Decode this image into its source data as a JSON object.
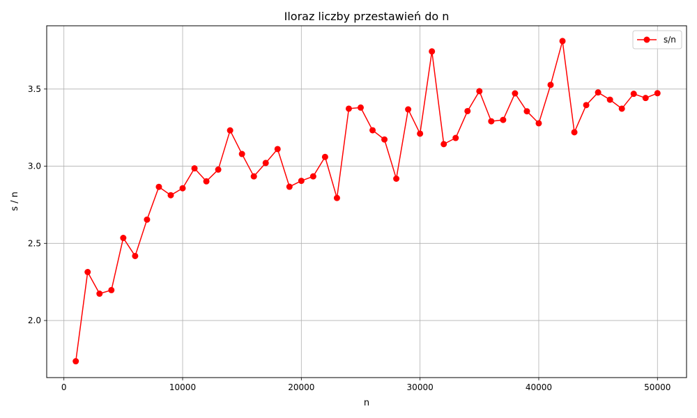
{
  "chart_data": {
    "type": "line",
    "title": "Iloraz liczby przestawień do n",
    "xlabel": "n",
    "ylabel": "s / n",
    "xlim": [
      -1450,
      52450
    ],
    "ylim": [
      1.63,
      3.91
    ],
    "xticks": [
      0,
      10000,
      20000,
      30000,
      40000,
      50000
    ],
    "yticks": [
      2.0,
      2.5,
      3.0,
      3.5
    ],
    "xtick_labels": [
      "0",
      "10000",
      "20000",
      "30000",
      "40000",
      "50000"
    ],
    "ytick_labels": [
      "2.0",
      "2.5",
      "3.0",
      "3.5"
    ],
    "grid": true,
    "legend_position": "top-right",
    "series": [
      {
        "name": "s/n",
        "color": "#ff0000",
        "marker": "circle",
        "x": [
          1000,
          2000,
          3000,
          4000,
          5000,
          6000,
          7000,
          8000,
          9000,
          10000,
          11000,
          12000,
          13000,
          14000,
          15000,
          16000,
          17000,
          18000,
          19000,
          20000,
          21000,
          22000,
          23000,
          24000,
          25000,
          26000,
          27000,
          28000,
          29000,
          30000,
          31000,
          32000,
          33000,
          34000,
          35000,
          36000,
          37000,
          38000,
          39000,
          40000,
          41000,
          42000,
          43000,
          44000,
          45000,
          46000,
          47000,
          48000,
          49000,
          50000
        ],
        "values": [
          1.736,
          2.314,
          2.174,
          2.197,
          2.535,
          2.418,
          2.654,
          2.866,
          2.812,
          2.857,
          2.986,
          2.902,
          2.978,
          3.232,
          3.079,
          2.934,
          3.021,
          3.111,
          2.867,
          2.905,
          2.934,
          3.06,
          2.794,
          3.373,
          3.38,
          3.233,
          3.173,
          2.919,
          3.368,
          3.211,
          3.744,
          3.143,
          3.183,
          3.357,
          3.486,
          3.291,
          3.3,
          3.472,
          3.356,
          3.278,
          3.527,
          3.811,
          3.22,
          3.396,
          3.478,
          3.431,
          3.373,
          3.469,
          3.442,
          3.473
        ]
      }
    ]
  }
}
